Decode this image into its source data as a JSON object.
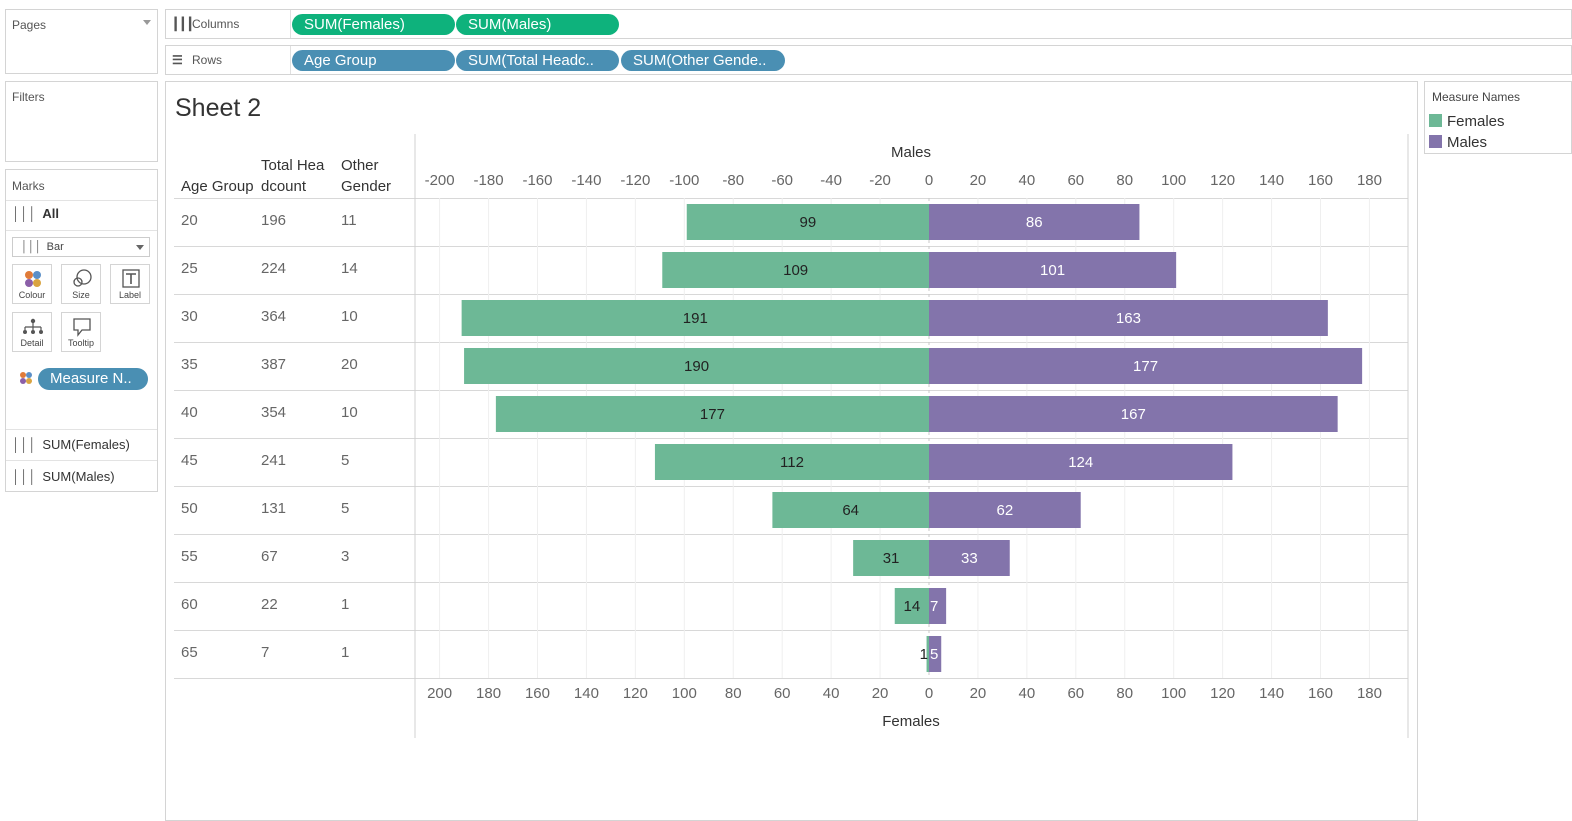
{
  "pages": {
    "title": "Pages"
  },
  "filters": {
    "title": "Filters"
  },
  "marks": {
    "title": "Marks",
    "all_label": "All",
    "mark_type": "Bar",
    "buttons": [
      {
        "label": "Colour",
        "icon": "colour-icon"
      },
      {
        "label": "Size",
        "icon": "size-icon"
      },
      {
        "label": "Label",
        "icon": "label-icon"
      },
      {
        "label": "Detail",
        "icon": "detail-icon"
      },
      {
        "label": "Tooltip",
        "icon": "tooltip-icon"
      }
    ],
    "colour_pill": "Measure N..",
    "measures": [
      "SUM(Females)",
      "SUM(Males)"
    ]
  },
  "shelves": {
    "columns_label": "Columns",
    "rows_label": "Rows",
    "columns_pills": [
      "SUM(Females)",
      "SUM(Males)"
    ],
    "rows_pills": [
      "Age Group",
      "SUM(Total Headc..",
      "SUM(Other Gende.."
    ]
  },
  "sheet": {
    "title": "Sheet 2",
    "headers": {
      "age_group": "Age Group",
      "total_line1": "Total Hea",
      "total_line2": "dcount",
      "other_line1": "Other",
      "other_line2": "Gender"
    },
    "rows": [
      {
        "age": "20",
        "total": "196",
        "other": "11"
      },
      {
        "age": "25",
        "total": "224",
        "other": "14"
      },
      {
        "age": "30",
        "total": "364",
        "other": "10"
      },
      {
        "age": "35",
        "total": "387",
        "other": "20"
      },
      {
        "age": "40",
        "total": "354",
        "other": "10"
      },
      {
        "age": "45",
        "total": "241",
        "other": "5"
      },
      {
        "age": "50",
        "total": "131",
        "other": "5"
      },
      {
        "age": "55",
        "total": "67",
        "other": "3"
      },
      {
        "age": "60",
        "total": "22",
        "other": "1"
      },
      {
        "age": "65",
        "total": "7",
        "other": "1"
      }
    ]
  },
  "legend": {
    "title": "Measure Names",
    "items": [
      {
        "label": "Females",
        "color": "#6db896"
      },
      {
        "label": "Males",
        "color": "#8374ab"
      }
    ]
  },
  "chart_data": {
    "type": "bar",
    "orientation": "horizontal-diverging",
    "categories": [
      "20",
      "25",
      "30",
      "35",
      "40",
      "45",
      "50",
      "55",
      "60",
      "65"
    ],
    "series": [
      {
        "name": "Females",
        "values": [
          99,
          109,
          191,
          190,
          177,
          112,
          64,
          31,
          14,
          1
        ],
        "color": "#6db896"
      },
      {
        "name": "Males",
        "values": [
          86,
          101,
          163,
          177,
          167,
          124,
          62,
          33,
          7,
          5
        ],
        "color": "#8374ab"
      }
    ],
    "top_axis_title": "Males",
    "bottom_axis_title": "Females",
    "top_ticks": [
      "-200",
      "-180",
      "-160",
      "-140",
      "-120",
      "-100",
      "-80",
      "-60",
      "-40",
      "-20",
      "0",
      "20",
      "40",
      "60",
      "80",
      "100",
      "120",
      "140",
      "160",
      "180"
    ],
    "bottom_ticks": [
      "200",
      "180",
      "160",
      "140",
      "120",
      "100",
      "80",
      "60",
      "40",
      "20",
      "0",
      "20",
      "40",
      "60",
      "80",
      "100",
      "120",
      "140",
      "160",
      "180"
    ],
    "xlim": [
      -210,
      195
    ],
    "grid": true
  }
}
